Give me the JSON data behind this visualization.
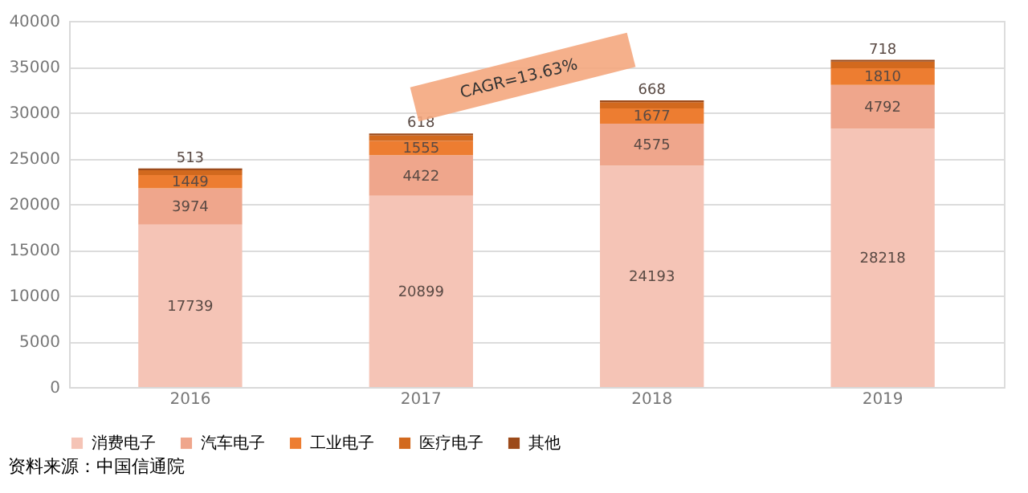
{
  "chart_data": {
    "type": "bar",
    "stacked": true,
    "categories": [
      "2016",
      "2017",
      "2018",
      "2019"
    ],
    "series": [
      {
        "name": "消费电子",
        "color": "#f5c4b6",
        "values": [
          17739,
          20899,
          24193,
          28218
        ],
        "value_labels": [
          "17739",
          "20899",
          "24193",
          "28218"
        ]
      },
      {
        "name": "汽车电子",
        "color": "#efa68c",
        "values": [
          3974,
          4422,
          4575,
          4792
        ],
        "value_labels": [
          "3974",
          "4422",
          "4575",
          "4792"
        ]
      },
      {
        "name": "工业电子",
        "color": "#ed7d31",
        "values": [
          1449,
          1555,
          1677,
          1810
        ],
        "value_labels": [
          "1449",
          "1555",
          "1677",
          "1810"
        ]
      },
      {
        "name": "医疗电子",
        "color": "#d2691e",
        "values": [
          513,
          618,
          668,
          718
        ],
        "value_labels": [
          "513",
          "618",
          "668",
          "718"
        ]
      },
      {
        "name": "其他",
        "color": "#9c4a1a",
        "values": [
          200,
          200,
          200,
          200
        ]
      }
    ],
    "ylim": [
      0,
      40000
    ],
    "yticks": [
      0,
      5000,
      10000,
      15000,
      20000,
      25000,
      30000,
      35000,
      40000
    ],
    "grid": "y",
    "legend": "bottom",
    "annotations": [
      "CAGR=13.63%",
      "资料来源：中国信通院"
    ]
  }
}
